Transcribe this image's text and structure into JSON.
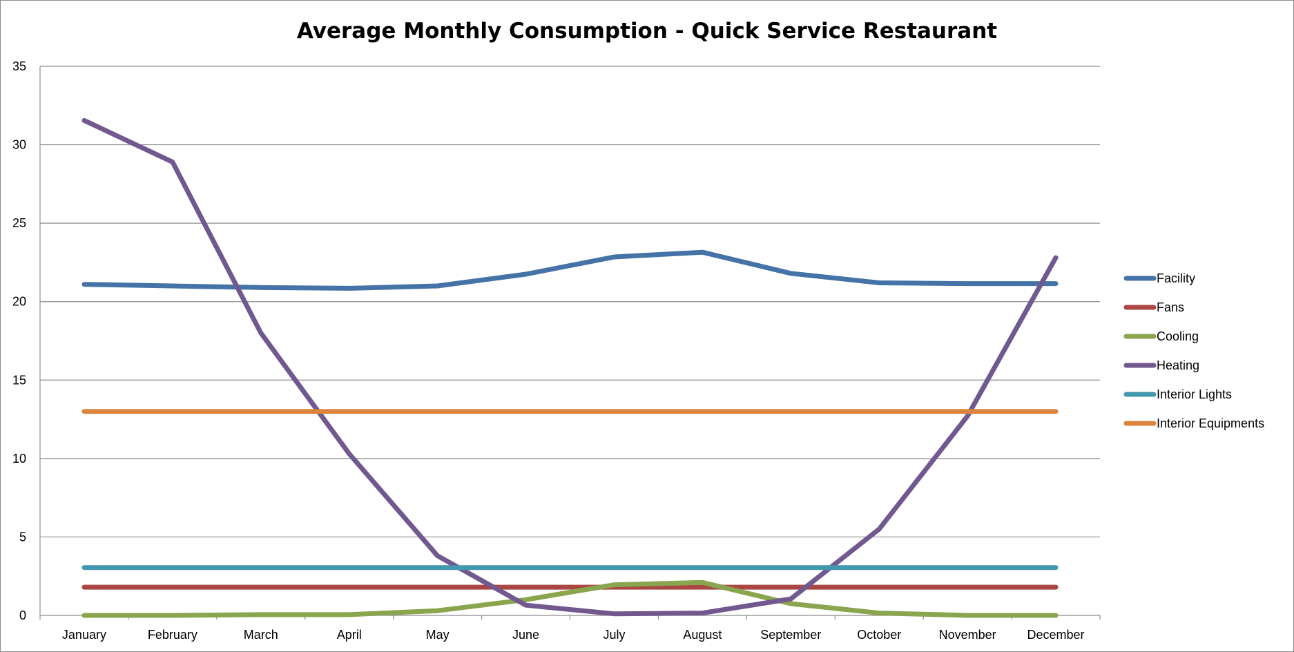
{
  "chart_data": {
    "type": "line",
    "title": "Average Monthly Consumption - Quick Service Restaurant",
    "xlabel": "",
    "ylabel": "",
    "ylim": [
      0,
      35
    ],
    "yticks": [
      0,
      5,
      10,
      15,
      20,
      25,
      30,
      35
    ],
    "grid": true,
    "legend_position": "right",
    "categories": [
      "January",
      "February",
      "March",
      "April",
      "May",
      "June",
      "July",
      "August",
      "September",
      "October",
      "November",
      "December"
    ],
    "series": [
      {
        "name": "Facility",
        "color": "#4572A7",
        "values": [
          21.1,
          21.0,
          20.9,
          20.85,
          21.0,
          21.75,
          22.85,
          23.15,
          21.8,
          21.2,
          21.15,
          21.15
        ]
      },
      {
        "name": "Fans",
        "color": "#AA4643",
        "values": [
          1.8,
          1.8,
          1.8,
          1.8,
          1.8,
          1.8,
          1.8,
          1.8,
          1.8,
          1.8,
          1.8,
          1.8
        ]
      },
      {
        "name": "Cooling",
        "color": "#89A54E",
        "values": [
          0.0,
          0.0,
          0.05,
          0.05,
          0.3,
          1.0,
          1.95,
          2.1,
          0.75,
          0.15,
          0.0,
          0.0
        ]
      },
      {
        "name": "Heating",
        "color": "#71588F",
        "values": [
          31.55,
          28.9,
          18.0,
          10.3,
          3.8,
          0.65,
          0.1,
          0.15,
          1.05,
          5.5,
          12.7,
          22.8
        ]
      },
      {
        "name": "Interior Lights",
        "color": "#4198AF",
        "values": [
          3.05,
          3.05,
          3.05,
          3.05,
          3.05,
          3.05,
          3.05,
          3.05,
          3.05,
          3.05,
          3.05,
          3.05
        ]
      },
      {
        "name": "Interior Equipments",
        "color": "#DB843D",
        "values": [
          13.0,
          13.0,
          13.0,
          13.0,
          13.0,
          13.0,
          13.0,
          13.0,
          13.0,
          13.0,
          13.0,
          13.0
        ]
      }
    ]
  }
}
